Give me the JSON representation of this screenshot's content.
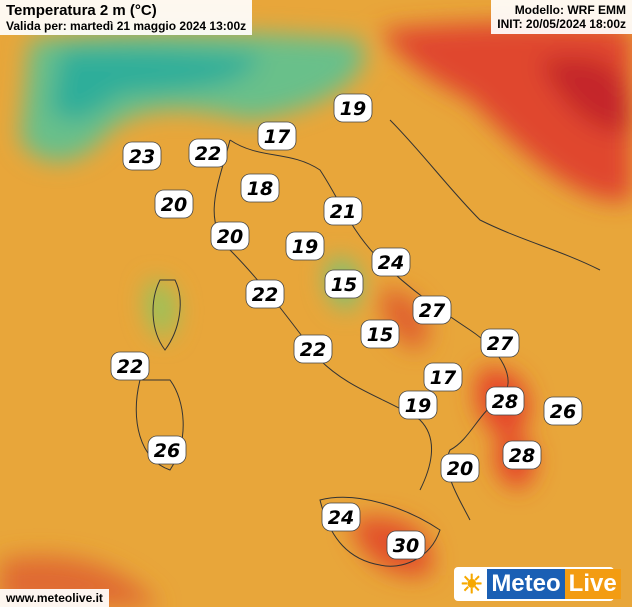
{
  "header": {
    "title": "Temperatura 2 m (°C)",
    "valid": "Valida per: martedì 21 maggio 2024 13:00z"
  },
  "model": {
    "name": "Modello: WRF EMM",
    "init": "INIT: 20/05/2024 18:00z"
  },
  "labels": [
    19,
    17,
    23,
    22,
    18,
    20,
    21,
    20,
    19,
    24,
    15,
    22,
    27,
    15,
    22,
    27,
    22,
    17,
    19,
    28,
    26,
    26,
    20,
    28,
    24,
    30
  ],
  "footer": {
    "url": "www.meteolive.it"
  },
  "logo": {
    "meteo": "Meteo",
    "live": "Live"
  }
}
